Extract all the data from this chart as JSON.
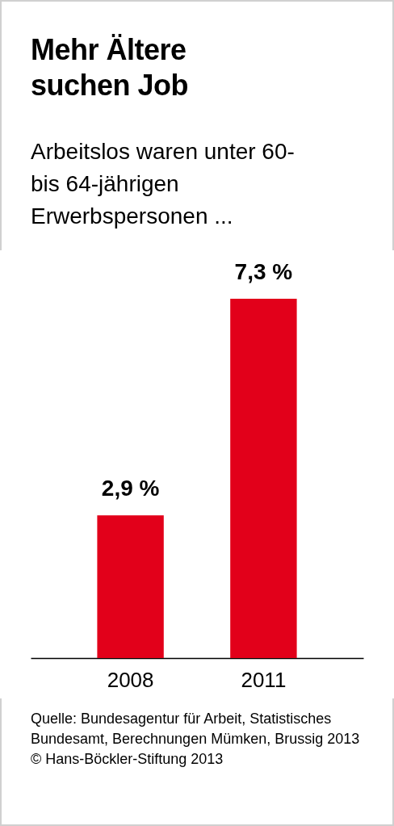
{
  "chart_data": {
    "type": "bar",
    "title": "Mehr Ältere suchen Job",
    "subtitle": "Arbeitslos waren unter 60- bis 64-jährigen Erwerbspersonen ...",
    "categories": [
      "2008",
      "2011"
    ],
    "values": [
      2.9,
      7.3
    ],
    "color": "#e2001a",
    "value_labels": [
      "2,9 %",
      "7,3 %"
    ],
    "annotations": [
      "Quelle: Bundesagentur für Arbeit, Statistisches  Bundesamt, Berechnungen Mümken, Brussig 2013",
      "© Hans-Böckler-Stiftung 2013"
    ]
  }
}
